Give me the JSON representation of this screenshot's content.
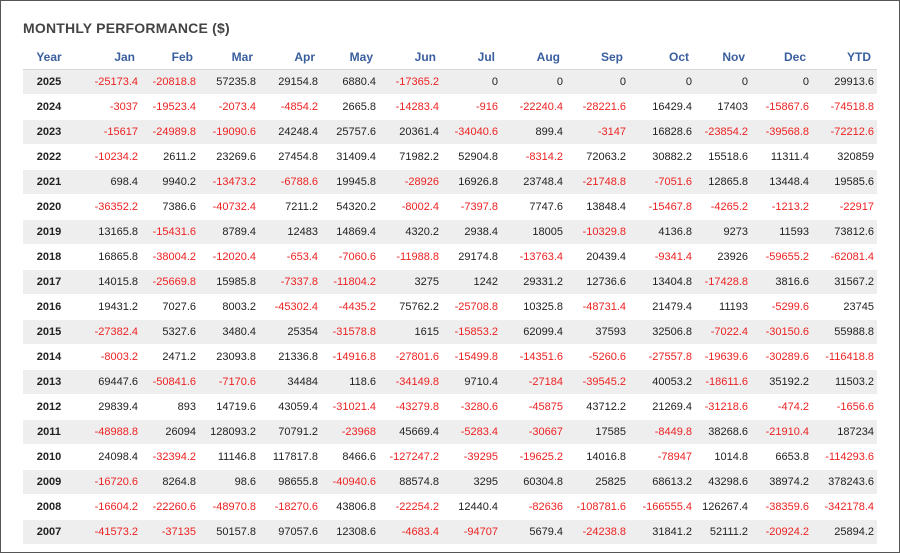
{
  "title": "MONTHLY PERFORMANCE ($)",
  "columns": [
    "Year",
    "Jan",
    "Feb",
    "Mar",
    "Apr",
    "May",
    "Jun",
    "Jul",
    "Aug",
    "Sep",
    "Oct",
    "Nov",
    "Dec",
    "YTD"
  ],
  "rows": [
    [
      "2025",
      "-25173.4",
      "-20818.8",
      "57235.8",
      "29154.8",
      "6880.4",
      "-17365.2",
      "0",
      "0",
      "0",
      "0",
      "0",
      "0",
      "29913.6"
    ],
    [
      "2024",
      "-3037",
      "-19523.4",
      "-2073.4",
      "-4854.2",
      "2665.8",
      "-14283.4",
      "-916",
      "-22240.4",
      "-28221.6",
      "16429.4",
      "17403",
      "-15867.6",
      "-74518.8"
    ],
    [
      "2023",
      "-15617",
      "-24989.8",
      "-19090.6",
      "24248.4",
      "25757.6",
      "20361.4",
      "-34040.6",
      "899.4",
      "-3147",
      "16828.6",
      "-23854.2",
      "-39568.8",
      "-72212.6"
    ],
    [
      "2022",
      "-10234.2",
      "2611.2",
      "23269.6",
      "27454.8",
      "31409.4",
      "71982.2",
      "52904.8",
      "-8314.2",
      "72063.2",
      "30882.2",
      "15518.6",
      "11311.4",
      "320859"
    ],
    [
      "2021",
      "698.4",
      "9940.2",
      "-13473.2",
      "-6788.6",
      "19945.8",
      "-28926",
      "16926.8",
      "23748.4",
      "-21748.8",
      "-7051.6",
      "12865.8",
      "13448.4",
      "19585.6"
    ],
    [
      "2020",
      "-36352.2",
      "7386.6",
      "-40732.4",
      "7211.2",
      "54320.2",
      "-8002.4",
      "-7397.8",
      "7747.6",
      "13848.4",
      "-15467.8",
      "-4265.2",
      "-1213.2",
      "-22917"
    ],
    [
      "2019",
      "13165.8",
      "-15431.6",
      "8789.4",
      "12483",
      "14869.4",
      "4320.2",
      "2938.4",
      "18005",
      "-10329.8",
      "4136.8",
      "9273",
      "11593",
      "73812.6"
    ],
    [
      "2018",
      "16865.8",
      "-38004.2",
      "-12020.4",
      "-653.4",
      "-7060.6",
      "-11988.8",
      "29174.8",
      "-13763.4",
      "20439.4",
      "-9341.4",
      "23926",
      "-59655.2",
      "-62081.4"
    ],
    [
      "2017",
      "14015.8",
      "-25669.8",
      "15985.8",
      "-7337.8",
      "-11804.2",
      "3275",
      "1242",
      "29331.2",
      "12736.6",
      "13404.8",
      "-17428.8",
      "3816.6",
      "31567.2"
    ],
    [
      "2016",
      "19431.2",
      "7027.6",
      "8003.2",
      "-45302.4",
      "-4435.2",
      "75762.2",
      "-25708.8",
      "10325.8",
      "-48731.4",
      "21479.4",
      "11193",
      "-5299.6",
      "23745"
    ],
    [
      "2015",
      "-27382.4",
      "5327.6",
      "3480.4",
      "25354",
      "-31578.8",
      "1615",
      "-15853.2",
      "62099.4",
      "37593",
      "32506.8",
      "-7022.4",
      "-30150.6",
      "55988.8"
    ],
    [
      "2014",
      "-8003.2",
      "2471.2",
      "23093.8",
      "21336.8",
      "-14916.8",
      "-27801.6",
      "-15499.8",
      "-14351.6",
      "-5260.6",
      "-27557.8",
      "-19639.6",
      "-30289.6",
      "-116418.8"
    ],
    [
      "2013",
      "69447.6",
      "-50841.6",
      "-7170.6",
      "34484",
      "118.6",
      "-34149.8",
      "9710.4",
      "-27184",
      "-39545.2",
      "40053.2",
      "-18611.6",
      "35192.2",
      "11503.2"
    ],
    [
      "2012",
      "29839.4",
      "893",
      "14719.6",
      "43059.4",
      "-31021.4",
      "-43279.8",
      "-3280.6",
      "-45875",
      "43712.2",
      "21269.4",
      "-31218.6",
      "-474.2",
      "-1656.6"
    ],
    [
      "2011",
      "-48988.8",
      "26094",
      "128093.2",
      "70791.2",
      "-23968",
      "45669.4",
      "-5283.4",
      "-30667",
      "17585",
      "-8449.8",
      "38268.6",
      "-21910.4",
      "187234"
    ],
    [
      "2010",
      "24098.4",
      "-32394.2",
      "11146.8",
      "117817.8",
      "8466.6",
      "-127247.2",
      "-39295",
      "-19625.2",
      "14016.8",
      "-78947",
      "1014.8",
      "6653.8",
      "-114293.6"
    ],
    [
      "2009",
      "-16720.6",
      "8264.8",
      "98.6",
      "98655.8",
      "-40940.6",
      "88574.8",
      "3295",
      "60304.8",
      "25825",
      "68613.2",
      "43298.6",
      "38974.2",
      "378243.6"
    ],
    [
      "2008",
      "-16604.2",
      "-22260.6",
      "-48970.8",
      "-18270.6",
      "43806.8",
      "-22254.2",
      "12440.4",
      "-82636",
      "-108781.6",
      "-166555.4",
      "126267.4",
      "-38359.6",
      "-342178.4"
    ],
    [
      "2007",
      "-41573.2",
      "-37135",
      "50157.8",
      "97057.6",
      "12308.6",
      "-4683.4",
      "-94707",
      "5679.4",
      "-24238.8",
      "31841.2",
      "52111.2",
      "-20924.2",
      "25894.2"
    ]
  ],
  "colors": {
    "header_text": "#3a5f9e",
    "negative": "#ee2222",
    "stripe": "#eeeeee"
  }
}
